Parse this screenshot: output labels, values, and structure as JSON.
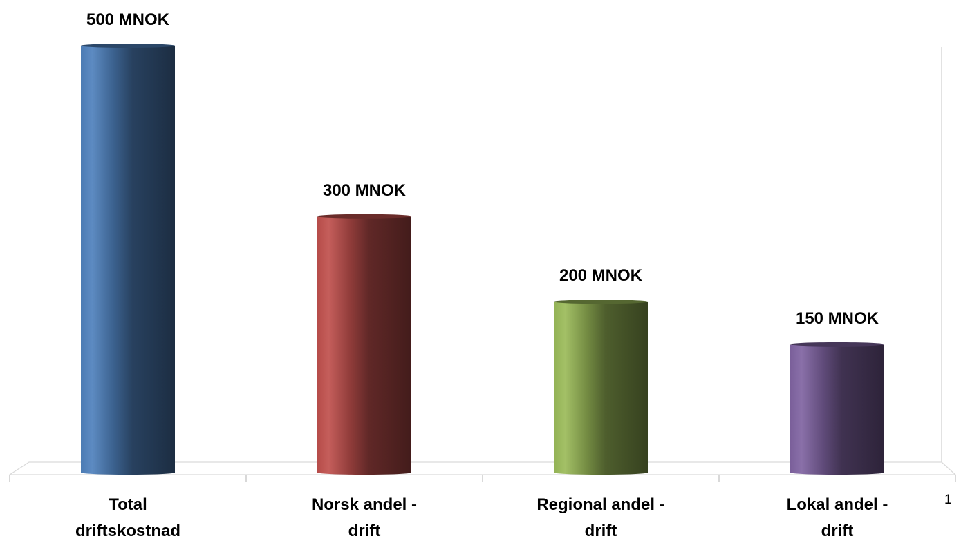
{
  "chart_data": {
    "type": "bar",
    "style": "3d-cylinder",
    "categories": [
      [
        "Total",
        "driftskostnad"
      ],
      [
        "Norsk andel -",
        "drift"
      ],
      [
        "Regional andel -",
        "drift"
      ],
      [
        "Lokal andel -",
        "drift"
      ]
    ],
    "values": [
      500,
      300,
      200,
      150
    ],
    "data_labels": [
      "500 MNOK",
      "300 MNOK",
      "200 MNOK",
      "150 MNOK"
    ],
    "colors": [
      "#4F81BD",
      "#C0504D",
      "#9BBB59",
      "#8064A2"
    ],
    "ylim": [
      0,
      500
    ],
    "grid": false,
    "legend": "none"
  },
  "page_number": "1"
}
